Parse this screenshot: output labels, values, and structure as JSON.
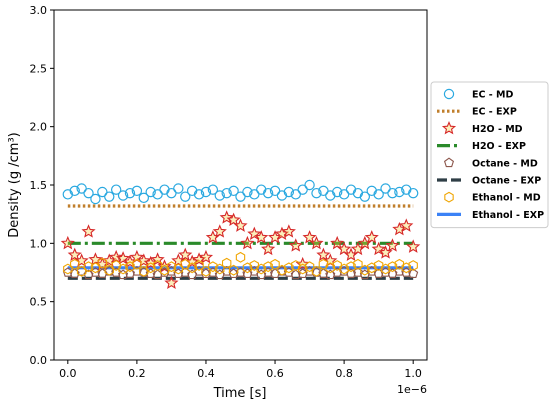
{
  "chart_data": {
    "type": "scatter",
    "xlabel": "Time [s]",
    "ylabel": "Density (g /cm³)",
    "x_offset_label": "1e−6",
    "xlim": [
      -0.04,
      1.04
    ],
    "ylim": [
      0.0,
      3.0
    ],
    "x_ticks": [
      0.0,
      0.2,
      0.4,
      0.6,
      0.8,
      1.0
    ],
    "x_tick_labels": [
      "0.0",
      "0.2",
      "0.4",
      "0.6",
      "0.8",
      "1.0"
    ],
    "y_ticks": [
      0.0,
      0.5,
      1.0,
      1.5,
      2.0,
      2.5,
      3.0
    ],
    "y_tick_labels": [
      "0.0",
      "0.5",
      "1.0",
      "1.5",
      "2.0",
      "2.5",
      "3.0"
    ],
    "grid": false,
    "legend_position": "right, outside plot",
    "series": [
      {
        "name": "EC - MD",
        "kind": "markers",
        "marker": "circle",
        "color": "#29a8e0",
        "x": [
          0.0,
          0.02,
          0.04,
          0.06,
          0.08,
          0.1,
          0.12,
          0.14,
          0.16,
          0.18,
          0.2,
          0.22,
          0.24,
          0.26,
          0.28,
          0.3,
          0.32,
          0.34,
          0.36,
          0.38,
          0.4,
          0.42,
          0.44,
          0.46,
          0.48,
          0.5,
          0.52,
          0.54,
          0.56,
          0.58,
          0.6,
          0.62,
          0.64,
          0.66,
          0.68,
          0.7,
          0.72,
          0.74,
          0.76,
          0.78,
          0.8,
          0.82,
          0.84,
          0.86,
          0.88,
          0.9,
          0.92,
          0.94,
          0.96,
          0.98,
          1.0
        ],
        "y": [
          1.42,
          1.45,
          1.47,
          1.43,
          1.38,
          1.44,
          1.4,
          1.46,
          1.41,
          1.43,
          1.45,
          1.39,
          1.44,
          1.42,
          1.46,
          1.43,
          1.47,
          1.4,
          1.45,
          1.42,
          1.44,
          1.46,
          1.41,
          1.43,
          1.45,
          1.4,
          1.44,
          1.42,
          1.46,
          1.43,
          1.45,
          1.41,
          1.44,
          1.42,
          1.46,
          1.5,
          1.43,
          1.45,
          1.41,
          1.44,
          1.42,
          1.46,
          1.43,
          1.4,
          1.45,
          1.42,
          1.47,
          1.43,
          1.44,
          1.46,
          1.43
        ]
      },
      {
        "name": "EC - EXP",
        "kind": "line",
        "dash": "dotted",
        "color": "#c07f2c",
        "x": [
          0.0,
          1.0
        ],
        "y": [
          1.32,
          1.32
        ]
      },
      {
        "name": "H2O - MD",
        "kind": "markers",
        "marker": "star",
        "color": "#d62728",
        "x": [
          0.0,
          0.02,
          0.04,
          0.06,
          0.08,
          0.1,
          0.12,
          0.14,
          0.16,
          0.18,
          0.2,
          0.22,
          0.24,
          0.26,
          0.28,
          0.3,
          0.32,
          0.34,
          0.36,
          0.38,
          0.4,
          0.42,
          0.44,
          0.46,
          0.48,
          0.5,
          0.52,
          0.54,
          0.56,
          0.58,
          0.6,
          0.62,
          0.64,
          0.66,
          0.68,
          0.7,
          0.72,
          0.74,
          0.76,
          0.78,
          0.8,
          0.82,
          0.84,
          0.86,
          0.88,
          0.9,
          0.92,
          0.94,
          0.96,
          0.98,
          1.0
        ],
        "y": [
          1.0,
          0.9,
          0.85,
          1.1,
          0.86,
          0.82,
          0.85,
          0.88,
          0.87,
          0.84,
          0.88,
          0.85,
          0.83,
          0.86,
          0.8,
          0.66,
          0.85,
          0.9,
          0.84,
          0.86,
          0.88,
          1.05,
          1.1,
          1.22,
          1.2,
          1.15,
          1.0,
          1.08,
          1.05,
          0.95,
          1.05,
          1.08,
          1.1,
          0.98,
          0.82,
          1.05,
          1.0,
          0.9,
          0.85,
          1.0,
          0.95,
          0.9,
          0.95,
          1.0,
          1.05,
          0.95,
          0.92,
          0.98,
          1.12,
          1.15,
          0.97
        ]
      },
      {
        "name": "H2O - EXP",
        "kind": "line",
        "dash": "dashdot",
        "color": "#2a8a2a",
        "x": [
          0.0,
          1.0
        ],
        "y": [
          1.0,
          1.0
        ]
      },
      {
        "name": "Octane - MD",
        "kind": "markers",
        "marker": "pentagon",
        "color": "#8c564b",
        "x": [
          0.0,
          0.02,
          0.04,
          0.06,
          0.08,
          0.1,
          0.12,
          0.14,
          0.16,
          0.18,
          0.2,
          0.22,
          0.24,
          0.26,
          0.28,
          0.3,
          0.32,
          0.34,
          0.36,
          0.38,
          0.4,
          0.42,
          0.44,
          0.46,
          0.48,
          0.5,
          0.52,
          0.54,
          0.56,
          0.58,
          0.6,
          0.62,
          0.64,
          0.66,
          0.68,
          0.7,
          0.72,
          0.74,
          0.76,
          0.78,
          0.8,
          0.82,
          0.84,
          0.86,
          0.88,
          0.9,
          0.92,
          0.94,
          0.96,
          0.98,
          1.0
        ],
        "y": [
          0.75,
          0.74,
          0.76,
          0.73,
          0.75,
          0.74,
          0.76,
          0.75,
          0.73,
          0.74,
          0.76,
          0.75,
          0.74,
          0.73,
          0.75,
          0.76,
          0.74,
          0.75,
          0.73,
          0.76,
          0.74,
          0.75,
          0.73,
          0.76,
          0.74,
          0.75,
          0.74,
          0.76,
          0.73,
          0.75,
          0.74,
          0.76,
          0.75,
          0.73,
          0.74,
          0.76,
          0.75,
          0.74,
          0.73,
          0.75,
          0.76,
          0.74,
          0.75,
          0.73,
          0.76,
          0.74,
          0.75,
          0.74,
          0.76,
          0.75,
          0.74
        ]
      },
      {
        "name": "Octane - EXP",
        "kind": "line",
        "dash": "dashed",
        "color": "#2f3e46",
        "x": [
          0.0,
          1.0
        ],
        "y": [
          0.7,
          0.7
        ]
      },
      {
        "name": "Ethanol - MD",
        "kind": "markers",
        "marker": "hexagon",
        "color": "#f0a500",
        "x": [
          0.0,
          0.02,
          0.04,
          0.06,
          0.08,
          0.1,
          0.12,
          0.14,
          0.16,
          0.18,
          0.2,
          0.22,
          0.24,
          0.26,
          0.28,
          0.3,
          0.32,
          0.34,
          0.36,
          0.38,
          0.4,
          0.42,
          0.44,
          0.46,
          0.48,
          0.5,
          0.52,
          0.54,
          0.56,
          0.58,
          0.6,
          0.62,
          0.64,
          0.66,
          0.68,
          0.7,
          0.72,
          0.74,
          0.76,
          0.78,
          0.8,
          0.82,
          0.84,
          0.86,
          0.88,
          0.9,
          0.92,
          0.94,
          0.96,
          0.98,
          1.0
        ],
        "y": [
          0.78,
          0.82,
          0.76,
          0.8,
          0.79,
          0.83,
          0.77,
          0.81,
          0.78,
          0.8,
          0.82,
          0.76,
          0.79,
          0.81,
          0.77,
          0.8,
          0.78,
          0.82,
          0.79,
          0.81,
          0.76,
          0.8,
          0.78,
          0.83,
          0.77,
          0.88,
          0.79,
          0.81,
          0.78,
          0.8,
          0.82,
          0.77,
          0.79,
          0.81,
          0.78,
          0.8,
          0.76,
          0.82,
          0.79,
          0.81,
          0.78,
          0.8,
          0.82,
          0.77,
          0.79,
          0.81,
          0.78,
          0.8,
          0.82,
          0.79,
          0.81
        ]
      },
      {
        "name": "Ethanol - EXP",
        "kind": "line",
        "dash": "solid",
        "color": "#3b82f6",
        "x": [
          0.0,
          1.0
        ],
        "y": [
          0.79,
          0.79
        ]
      }
    ]
  }
}
